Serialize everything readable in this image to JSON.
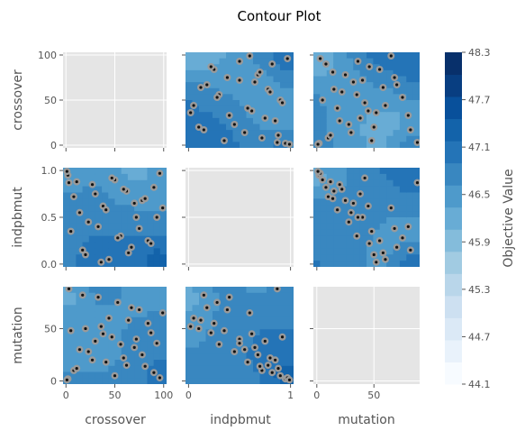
{
  "chart_data": {
    "type": "contour",
    "title": "Contour Plot",
    "colorbar": {
      "label": "Objective Value",
      "ticks": [
        "44.1",
        "44.7",
        "45.3",
        "45.9",
        "46.5",
        "47.1",
        "47.7",
        "48.3"
      ],
      "range": [
        44.1,
        48.3
      ],
      "palette": [
        "#f7fbff",
        "#e9f2fb",
        "#dbe9f6",
        "#cde0f1",
        "#b9d6ea",
        "#a1cbe2",
        "#84bcdb",
        "#68acd5",
        "#4e9acb",
        "#3987c0",
        "#2474b7",
        "#1363aa",
        "#08509b",
        "#083e81",
        "#08306b"
      ]
    },
    "params": [
      "crossover",
      "indpbmut",
      "mutation"
    ],
    "axes": {
      "crossover": {
        "range": [
          -3,
          103
        ],
        "ticks": [
          0,
          50,
          100
        ],
        "ticklabels": [
          "0",
          "50",
          "100"
        ]
      },
      "indpbmut": {
        "range": [
          -0.03,
          1.03
        ],
        "ticks": [
          0.0,
          0.5,
          1.0
        ],
        "ticklabels": [
          "0.0",
          "0.5",
          "1.0"
        ],
        "x_ticklabels": [
          "0",
          "1"
        ],
        "x_ticks": [
          0,
          1
        ]
      },
      "mutation": {
        "range": [
          -3,
          90
        ],
        "ticks": [
          0,
          50
        ],
        "ticklabels": [
          "0",
          "50"
        ]
      }
    },
    "trials": {
      "crossover": [
        2,
        8,
        14,
        20,
        27,
        33,
        38,
        44,
        50,
        56,
        62,
        67,
        72,
        78,
        84,
        90,
        96,
        99,
        5,
        11,
        17,
        23,
        30,
        36,
        41,
        47,
        53,
        59,
        64,
        70,
        75,
        81,
        87,
        93,
        1,
        3
      ],
      "indpbmut": [
        0.95,
        0.72,
        0.55,
        0.1,
        0.85,
        0.4,
        0.62,
        0.05,
        0.9,
        0.3,
        0.78,
        0.18,
        0.5,
        0.68,
        0.25,
        0.82,
        0.97,
        0.6,
        0.35,
        0.88,
        0.15,
        0.45,
        0.75,
        0.02,
        0.58,
        0.92,
        0.28,
        0.8,
        0.12,
        0.65,
        0.38,
        0.7,
        0.22,
        0.5,
        0.99,
        0.87
      ],
      "mutation": [
        2,
        10,
        30,
        50,
        20,
        80,
        45,
        60,
        5,
        35,
        15,
        70,
        40,
        25,
        55,
        8,
        3,
        65,
        48,
        12,
        82,
        28,
        38,
        52,
        18,
        42,
        75,
        22,
        58,
        32,
        68,
        14,
        46,
        36,
        1,
        88
      ]
    }
  }
}
